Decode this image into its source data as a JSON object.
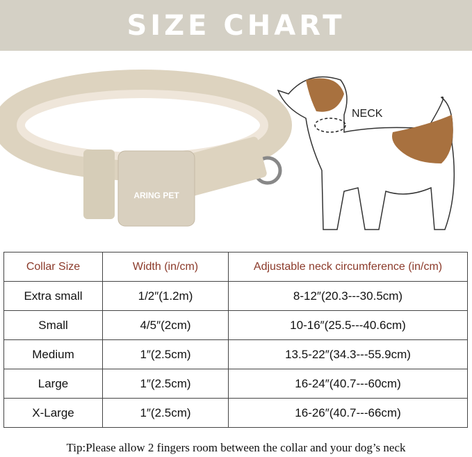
{
  "title": "SIZE CHART",
  "collar_logo": "ARING PET",
  "neck_label": "NECK",
  "table": {
    "headers": [
      "Collar Size",
      "Width (in/cm)",
      "Adjustable neck circumference (in/cm)"
    ],
    "rows": [
      [
        "Extra small",
        "1/2″(1.2m)",
        "8-12″(20.3---30.5cm)"
      ],
      [
        "Small",
        "4/5″(2cm)",
        "10-16″(25.5---40.6cm)"
      ],
      [
        "Medium",
        "1″(2.5cm)",
        "13.5-22″(34.3---55.9cm)"
      ],
      [
        "Large",
        "1″(2.5cm)",
        "16-24″(40.7---60cm)"
      ],
      [
        "X-Large",
        "1″(2.5cm)",
        "16-26″(40.7---66cm)"
      ]
    ]
  },
  "tip": "Tip:Please allow 2 fingers room between the collar and your dog’s neck",
  "colors": {
    "banner": "#d4d0c5",
    "header_text": "#8b3a2a",
    "collar": "#e2d9c6",
    "dog_patch": "#a8713f"
  }
}
